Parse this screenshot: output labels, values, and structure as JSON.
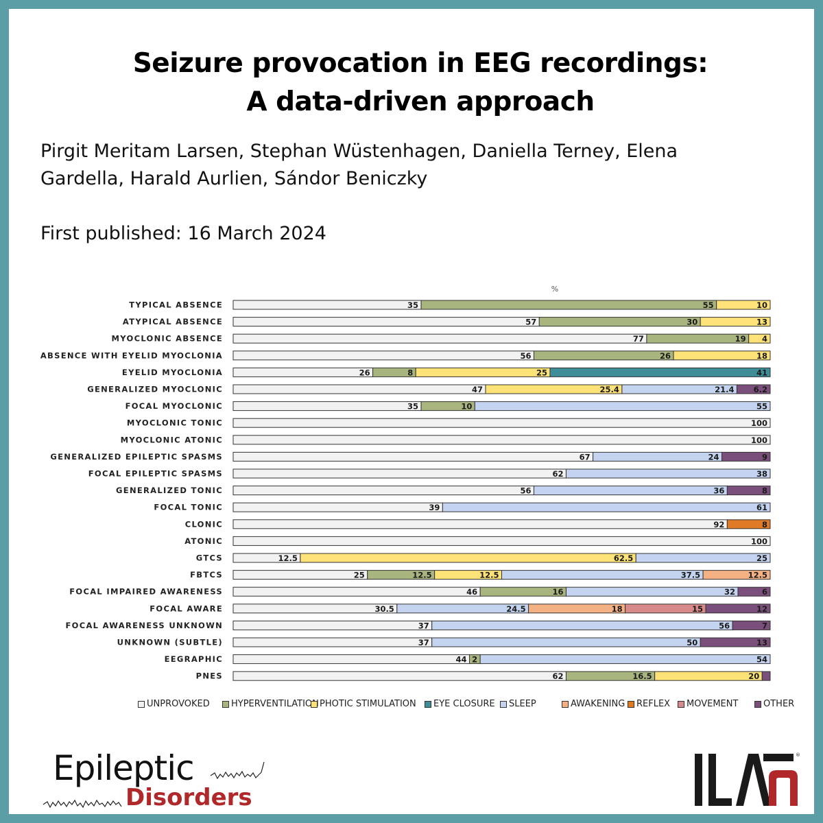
{
  "header": {
    "title_line1": "Seizure provocation in EEG recordings:",
    "title_line2": "A data-driven approach",
    "authors_line1": "Pirgit Meritam Larsen, Stephan Wüstenhagen, Daniella Terney, Elena",
    "authors_line2": "Gardella, Harald Aurlien, Sándor Beniczky",
    "published": "First published: 16 March 2024"
  },
  "logos": {
    "journal_word1": "Epileptic",
    "journal_word2": "Disorders",
    "society": "ILAE"
  },
  "chart_data": {
    "type": "bar",
    "orientation": "horizontal",
    "stacked": true,
    "xlabel": "%",
    "xlim": [
      0,
      100
    ],
    "grid": false,
    "legend_position": "bottom",
    "categories": [
      "TYPICAL ABSENCE",
      "ATYPICAL ABSENCE",
      "MYOCLONIC ABSENCE",
      "ABSENCE WITH EYELID MYOCLONIA",
      "EYELID MYOCLONIA",
      "GENERALIZED MYOCLONIC",
      "FOCAL MYOCLONIC",
      "MYOCLONIC TONIC",
      "MYOCLONIC ATONIC",
      "GENERALIZED EPILEPTIC SPASMS",
      "FOCAL EPILEPTIC SPASMS",
      "GENERALIZED TONIC",
      "FOCAL TONIC",
      "CLONIC",
      "ATONIC",
      "GTCS",
      "FBTCS",
      "FOCAL IMPAIRED AWARENESS",
      "FOCAL AWARE",
      "FOCAL AWARENESS UNKNOWN",
      "UNKNOWN (SUBTLE)",
      "EEGRAPHIC",
      "PNES"
    ],
    "series": [
      {
        "name": "UNPROVOKED",
        "color": "#f2f2f2",
        "values": [
          35,
          57,
          77,
          56,
          26,
          47,
          35,
          100,
          100,
          67,
          62,
          56,
          39,
          92,
          100,
          12.5,
          25,
          46,
          30.5,
          37,
          37,
          44,
          62
        ]
      },
      {
        "name": "HYPERVENTILATION",
        "color": "#a9b57e",
        "values": [
          55,
          30,
          19,
          26,
          8,
          0,
          10,
          0,
          0,
          0,
          0,
          0,
          0,
          0,
          0,
          0,
          12.5,
          16,
          0,
          0,
          0,
          2,
          16.5
        ]
      },
      {
        "name": "PHOTIC STIMULATION",
        "color": "#fde277",
        "values": [
          10,
          13,
          4,
          18,
          25,
          25.4,
          0,
          0,
          0,
          0,
          0,
          0,
          0,
          0,
          0,
          62.5,
          12.5,
          0,
          0,
          0,
          0,
          0,
          20
        ]
      },
      {
        "name": "EYE CLOSURE",
        "color": "#3e8d98",
        "values": [
          0,
          0,
          0,
          0,
          41,
          0,
          0,
          0,
          0,
          0,
          0,
          0,
          0,
          0,
          0,
          0,
          0,
          0,
          0,
          0,
          0,
          0,
          0
        ]
      },
      {
        "name": "SLEEP",
        "color": "#c4d4f0",
        "values": [
          0,
          0,
          0,
          0,
          0,
          21.4,
          55,
          0,
          0,
          24,
          38,
          36,
          61,
          0,
          0,
          25,
          37.5,
          32,
          24.5,
          56,
          50,
          54,
          0
        ]
      },
      {
        "name": "AWAKENING",
        "color": "#f4b184",
        "values": [
          0,
          0,
          0,
          0,
          0,
          0,
          0,
          0,
          0,
          0,
          0,
          0,
          0,
          0,
          0,
          0,
          12.5,
          0,
          18,
          0,
          0,
          0,
          0
        ]
      },
      {
        "name": "REFLEX",
        "color": "#e07a27",
        "values": [
          0,
          0,
          0,
          0,
          0,
          0,
          0,
          0,
          0,
          0,
          0,
          0,
          0,
          8,
          0,
          0,
          0,
          0,
          0,
          0,
          0,
          0,
          0
        ]
      },
      {
        "name": "MOVEMENT",
        "color": "#d88a8a",
        "values": [
          0,
          0,
          0,
          0,
          0,
          0,
          0,
          0,
          0,
          0,
          0,
          0,
          0,
          0,
          0,
          0,
          0,
          0,
          15,
          0,
          0,
          0,
          0
        ]
      },
      {
        "name": "OTHER",
        "color": "#7b4f7b",
        "values": [
          0,
          0,
          0,
          0,
          0,
          6.2,
          0,
          0,
          0,
          9,
          0,
          8,
          0,
          0,
          0,
          0,
          0,
          6,
          12,
          7,
          13,
          0,
          1.5
        ]
      }
    ],
    "data_labels": [
      [
        "35",
        "55",
        "10",
        "",
        "",
        "",
        "",
        "",
        ""
      ],
      [
        "57",
        "30",
        "13",
        "",
        "",
        "",
        "",
        "",
        ""
      ],
      [
        "77",
        "19",
        "4",
        "",
        "",
        "",
        "",
        "",
        ""
      ],
      [
        "56",
        "26",
        "18",
        "",
        "",
        "",
        "",
        "",
        ""
      ],
      [
        "26",
        "8",
        "25",
        "41",
        "",
        "",
        "",
        "",
        ""
      ],
      [
        "47",
        "",
        "25.4",
        "",
        "21.4",
        "",
        "",
        "",
        "6.2"
      ],
      [
        "35",
        "10",
        "",
        "",
        "55",
        "",
        "",
        "",
        ""
      ],
      [
        "100",
        "",
        "",
        "",
        "",
        "",
        "",
        "",
        ""
      ],
      [
        "100",
        "",
        "",
        "",
        "",
        "",
        "",
        "",
        ""
      ],
      [
        "67",
        "",
        "",
        "",
        "24",
        "",
        "",
        "",
        "9"
      ],
      [
        "62",
        "",
        "",
        "",
        "38",
        "",
        "",
        "",
        ""
      ],
      [
        "56",
        "",
        "",
        "",
        "36",
        "",
        "",
        "",
        "8"
      ],
      [
        "39",
        "",
        "",
        "",
        "61",
        "",
        "",
        "",
        ""
      ],
      [
        "92",
        "",
        "",
        "",
        "",
        "",
        "8",
        "",
        ""
      ],
      [
        "100",
        "",
        "",
        "",
        "",
        "",
        "",
        "",
        ""
      ],
      [
        "12.5",
        "",
        "62.5",
        "",
        "25",
        "",
        "",
        "",
        ""
      ],
      [
        "25",
        "12.5",
        "12.5",
        "",
        "37.5",
        "12.5",
        "",
        "",
        ""
      ],
      [
        "46",
        "16",
        "",
        "",
        "32",
        "",
        "",
        "",
        "6"
      ],
      [
        "30.5",
        "",
        "",
        "",
        "24.5",
        "18",
        "",
        "15",
        "12"
      ],
      [
        "37",
        "",
        "",
        "",
        "56",
        "",
        "",
        "",
        "7"
      ],
      [
        "37",
        "",
        "",
        "",
        "50",
        "",
        "",
        "",
        "13"
      ],
      [
        "44",
        "2",
        "",
        "",
        "54",
        "",
        "",
        "",
        ""
      ],
      [
        "62",
        "16.5",
        "20",
        "",
        "",
        "",
        "",
        "",
        ""
      ]
    ]
  }
}
